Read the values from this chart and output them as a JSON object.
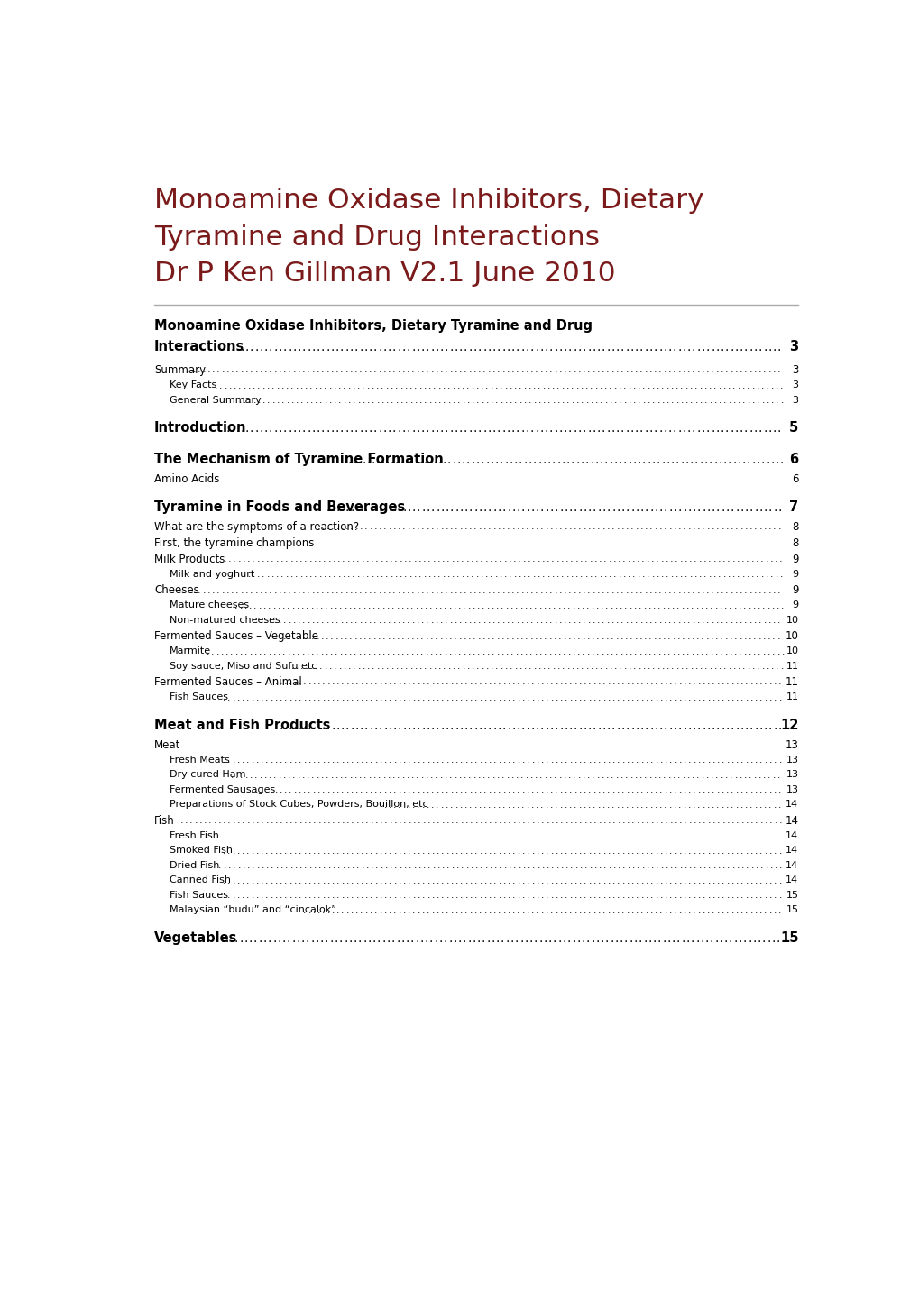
{
  "title_lines": [
    "Monoamine Oxidase Inhibitors, Dietary",
    "Tyramine and Drug Interactions",
    "Dr P Ken Gillman V2.1 June 2010"
  ],
  "title_color": "#7B1A1A",
  "bg_color": "#FFFFFF",
  "toc_entries": [
    {
      "text": "Monoamine Oxidase Inhibitors, Dietary Tyramine and Drug",
      "text2": "Interactions",
      "page": "3",
      "level": 0,
      "bold": true,
      "multiline": true
    },
    {
      "text": "Summary",
      "page": "3",
      "level": 1,
      "bold": false,
      "multiline": false
    },
    {
      "text": "Key Facts",
      "page": "3",
      "level": 2,
      "bold": false,
      "multiline": false
    },
    {
      "text": "General Summary",
      "page": "3",
      "level": 2,
      "bold": false,
      "multiline": false
    },
    {
      "text": "Introduction",
      "page": "5",
      "level": 0,
      "bold": true,
      "multiline": false
    },
    {
      "text": "The Mechanism of Tyramine Formation",
      "page": "6",
      "level": 0,
      "bold": true,
      "multiline": false
    },
    {
      "text": "Amino Acids",
      "page": "6",
      "level": 1,
      "bold": false,
      "multiline": false
    },
    {
      "text": "Tyramine in Foods and Beverages",
      "page": "7",
      "level": 0,
      "bold": true,
      "multiline": false
    },
    {
      "text": "What are the symptoms of a reaction?",
      "page": "8",
      "level": 1,
      "bold": false,
      "multiline": false
    },
    {
      "text": "First, the tyramine champions",
      "page": "8",
      "level": 1,
      "bold": false,
      "multiline": false
    },
    {
      "text": "Milk Products",
      "page": "9",
      "level": 1,
      "bold": false,
      "multiline": false
    },
    {
      "text": "Milk and yoghurt",
      "page": "9",
      "level": 2,
      "bold": false,
      "multiline": false
    },
    {
      "text": "Cheeses",
      "page": "9",
      "level": 1,
      "bold": false,
      "multiline": false
    },
    {
      "text": "Mature cheeses",
      "page": "9",
      "level": 2,
      "bold": false,
      "multiline": false
    },
    {
      "text": "Non-matured cheeses",
      "page": "10",
      "level": 2,
      "bold": false,
      "multiline": false
    },
    {
      "text": "Fermented Sauces – Vegetable",
      "page": "10",
      "level": 1,
      "bold": false,
      "multiline": false
    },
    {
      "text": "Marmite",
      "page": "10",
      "level": 2,
      "bold": false,
      "multiline": false
    },
    {
      "text": "Soy sauce, Miso and Sufu etc",
      "page": "11",
      "level": 2,
      "bold": false,
      "multiline": false
    },
    {
      "text": "Fermented Sauces – Animal",
      "page": "11",
      "level": 1,
      "bold": false,
      "multiline": false
    },
    {
      "text": "Fish Sauces",
      "page": "11",
      "level": 2,
      "bold": false,
      "multiline": false
    },
    {
      "text": "Meat and Fish Products",
      "page": "12",
      "level": 0,
      "bold": true,
      "multiline": false
    },
    {
      "text": "Meat",
      "page": "13",
      "level": 1,
      "bold": false,
      "multiline": false
    },
    {
      "text": "Fresh Meats",
      "page": "13",
      "level": 2,
      "bold": false,
      "multiline": false
    },
    {
      "text": "Dry cured Ham",
      "page": "13",
      "level": 2,
      "bold": false,
      "multiline": false
    },
    {
      "text": "Fermented Sausages",
      "page": "13",
      "level": 2,
      "bold": false,
      "multiline": false
    },
    {
      "text": "Preparations of Stock Cubes, Powders, Bouillon, etc",
      "page": "14",
      "level": 2,
      "bold": false,
      "multiline": false
    },
    {
      "text": "Fish",
      "page": "14",
      "level": 1,
      "bold": false,
      "multiline": false
    },
    {
      "text": "Fresh Fish",
      "page": "14",
      "level": 2,
      "bold": false,
      "multiline": false
    },
    {
      "text": "Smoked Fish",
      "page": "14",
      "level": 2,
      "bold": false,
      "multiline": false
    },
    {
      "text": "Dried Fish",
      "page": "14",
      "level": 2,
      "bold": false,
      "multiline": false
    },
    {
      "text": "Canned Fish",
      "page": "14",
      "level": 2,
      "bold": false,
      "multiline": false
    },
    {
      "text": "Fish Sauces",
      "page": "15",
      "level": 2,
      "bold": false,
      "multiline": false
    },
    {
      "text": "Malaysian “budu” and “cincalok”",
      "page": "15",
      "level": 2,
      "bold": false,
      "multiline": false
    },
    {
      "text": "Vegetables",
      "page": "15",
      "level": 0,
      "bold": true,
      "multiline": false
    }
  ]
}
